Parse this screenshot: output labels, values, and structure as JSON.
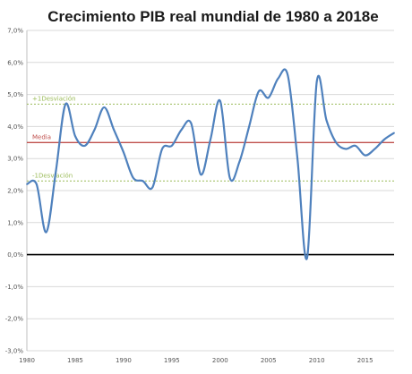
{
  "chart_data": {
    "type": "line",
    "title": "Crecimiento PIB real mundial de 1980 a 2018e",
    "xlabel": "",
    "ylabel": "",
    "x": [
      1980,
      1981,
      1982,
      1983,
      1984,
      1985,
      1986,
      1987,
      1988,
      1989,
      1990,
      1991,
      1992,
      1993,
      1994,
      1995,
      1996,
      1997,
      1998,
      1999,
      2000,
      2001,
      2002,
      2003,
      2004,
      2005,
      2006,
      2007,
      2008,
      2009,
      2010,
      2011,
      2012,
      2013,
      2014,
      2015,
      2016,
      2017,
      2018
    ],
    "series": [
      {
        "name": "",
        "color": "#4f81bd",
        "values": [
          2.2,
          2.2,
          0.7,
          2.6,
          4.7,
          3.7,
          3.4,
          3.9,
          4.6,
          3.9,
          3.2,
          2.4,
          2.3,
          2.1,
          3.3,
          3.4,
          3.9,
          4.1,
          2.5,
          3.6,
          4.8,
          2.4,
          2.9,
          4.0,
          5.1,
          4.9,
          5.5,
          5.6,
          3.0,
          -0.1,
          5.4,
          4.2,
          3.5,
          3.3,
          3.4,
          3.1,
          3.3,
          3.6,
          3.8
        ]
      }
    ],
    "reference_lines": [
      {
        "label": "Media",
        "value": 3.5,
        "color": "#c0504d",
        "style": "solid"
      },
      {
        "label": "+1Desviación",
        "value": 4.7,
        "color": "#9bbb59",
        "style": "dashed"
      },
      {
        "label": "-1Desviación",
        "value": 2.3,
        "color": "#9bbb59",
        "style": "dashed"
      }
    ],
    "zero_line_color": "#000000",
    "xlim": [
      1980,
      2018
    ],
    "ylim": [
      -3.0,
      7.0
    ],
    "y_ticks": [
      "-3,0%",
      "-2,0%",
      "-1,0%",
      "0,0%",
      "1,0%",
      "2,0%",
      "3,0%",
      "4,0%",
      "5,0%",
      "6,0%",
      "7,0%"
    ],
    "x_ticks": [
      "1980",
      "1985",
      "1990",
      "1995",
      "2000",
      "2005",
      "2010",
      "2015"
    ],
    "grid": true,
    "grid_color": "#d9d9d9"
  }
}
